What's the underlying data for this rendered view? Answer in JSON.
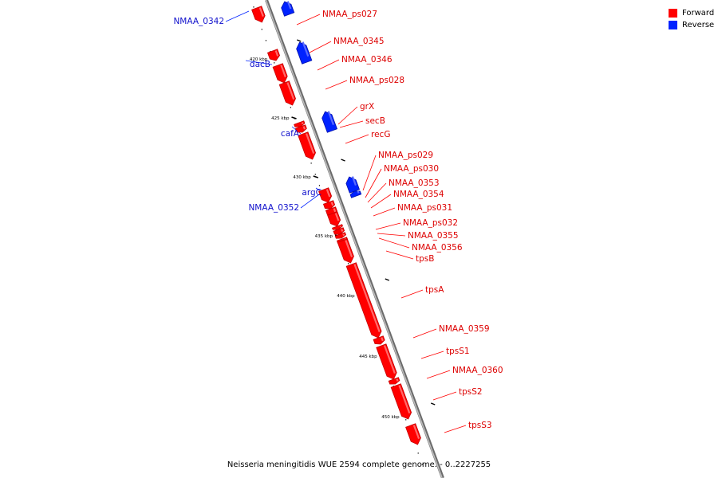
{
  "diagram": {
    "type": "genome_map",
    "colors": {
      "forward": "#ff0000",
      "reverse": "#0022ff",
      "backbone": "#999999"
    },
    "legend": [
      {
        "label": "Forward",
        "color": "#ff0000"
      },
      {
        "label": "Reverse",
        "color": "#0022ff"
      }
    ],
    "ticks": [
      {
        "label": "420 kbp"
      },
      {
        "label": "425 kbp"
      },
      {
        "label": "430 kbp"
      },
      {
        "label": "435 kbp"
      },
      {
        "label": "440 kbp"
      },
      {
        "label": "445 kbp"
      },
      {
        "label": "450 kbp"
      }
    ],
    "genes": [
      {
        "name": "NMAA_0342",
        "strand": "reverse"
      },
      {
        "name": "NMAA_ps027",
        "strand": "forward"
      },
      {
        "name": "dacB",
        "strand": "reverse"
      },
      {
        "name": "NMAA_0345",
        "strand": "forward"
      },
      {
        "name": "NMAA_0346",
        "strand": "forward"
      },
      {
        "name": "NMAA_ps028",
        "strand": "forward"
      },
      {
        "name": "cafA",
        "strand": "reverse"
      },
      {
        "name": "grX",
        "strand": "forward"
      },
      {
        "name": "secB",
        "strand": "forward"
      },
      {
        "name": "recG",
        "strand": "forward"
      },
      {
        "name": "argC",
        "strand": "reverse"
      },
      {
        "name": "NMAA_0352",
        "strand": "reverse"
      },
      {
        "name": "NMAA_ps029",
        "strand": "forward"
      },
      {
        "name": "NMAA_ps030",
        "strand": "forward"
      },
      {
        "name": "NMAA_0353",
        "strand": "forward"
      },
      {
        "name": "NMAA_0354",
        "strand": "forward"
      },
      {
        "name": "NMAA_ps031",
        "strand": "forward"
      },
      {
        "name": "NMAA_ps032",
        "strand": "forward"
      },
      {
        "name": "NMAA_0355",
        "strand": "forward"
      },
      {
        "name": "NMAA_0356",
        "strand": "forward"
      },
      {
        "name": "tpsB",
        "strand": "forward"
      },
      {
        "name": "tpsA",
        "strand": "forward"
      },
      {
        "name": "NMAA_0359",
        "strand": "forward"
      },
      {
        "name": "tpsS1",
        "strand": "forward"
      },
      {
        "name": "NMAA_0360",
        "strand": "forward"
      },
      {
        "name": "tpsS2",
        "strand": "forward"
      },
      {
        "name": "tpsS3",
        "strand": "forward"
      }
    ],
    "footer": "Neisseria meningitidis WUE 2594 complete genome. - 0..2227255"
  }
}
